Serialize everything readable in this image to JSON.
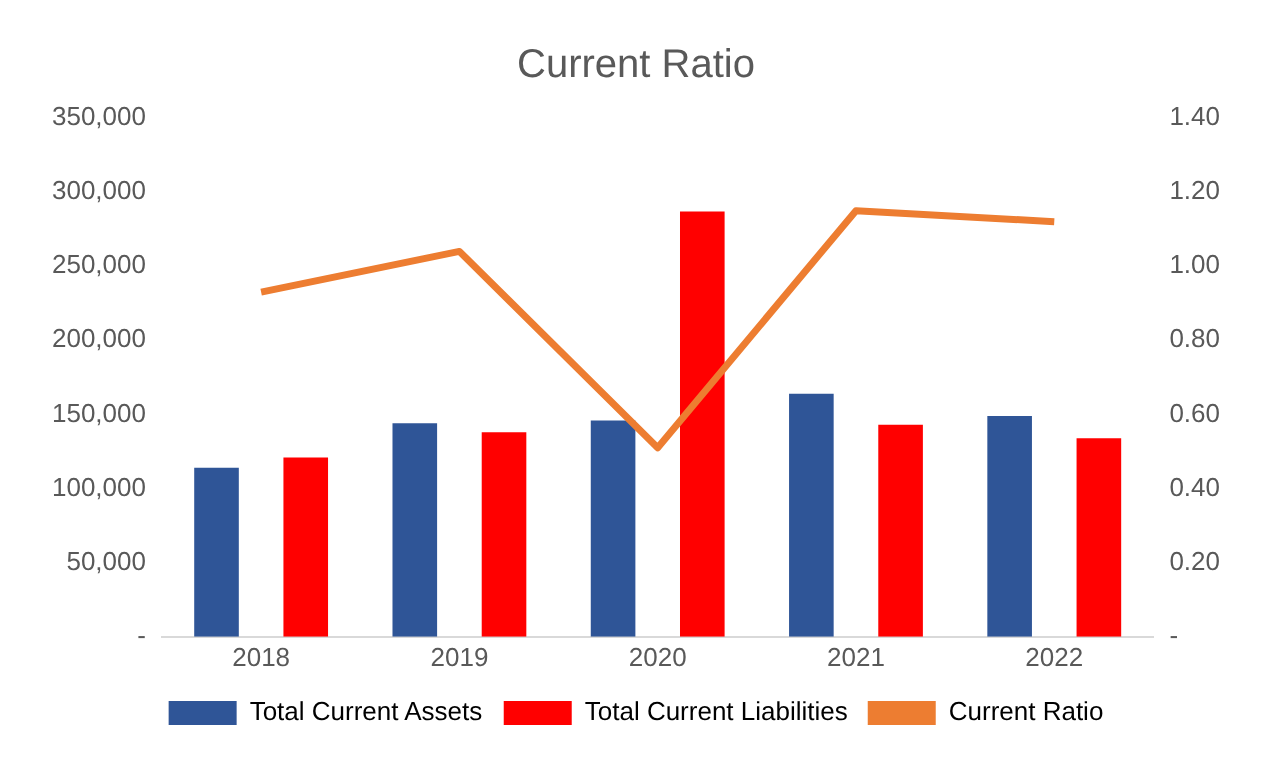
{
  "chart_data": {
    "type": "bar",
    "title": "Current Ratio",
    "categories": [
      "2018",
      "2019",
      "2020",
      "2021",
      "2022"
    ],
    "series": [
      {
        "name": "Total Current Assets",
        "color": "#2f5597",
        "values": [
          114000,
          144000,
          146000,
          164000,
          149000
        ]
      },
      {
        "name": "Total Current Liabilities",
        "color": "#ff0000",
        "values": [
          121000,
          138000,
          287000,
          143000,
          134000
        ]
      },
      {
        "name": "Current Ratio",
        "type": "line",
        "axis": "y2",
        "color": "#ed7d31",
        "values": [
          0.93,
          1.04,
          0.51,
          1.15,
          1.12
        ]
      }
    ],
    "ylim": [
      0,
      350000
    ],
    "yticks": [
      {
        "value": 0,
        "label": "-"
      },
      {
        "value": 50000,
        "label": "50,000"
      },
      {
        "value": 100000,
        "label": "100,000"
      },
      {
        "value": 150000,
        "label": "150,000"
      },
      {
        "value": 200000,
        "label": "200,000"
      },
      {
        "value": 250000,
        "label": "250,000"
      },
      {
        "value": 300000,
        "label": "300,000"
      },
      {
        "value": 350000,
        "label": "350,000"
      }
    ],
    "y2lim": [
      0,
      1.4
    ],
    "y2ticks": [
      {
        "value": 0,
        "label": "-"
      },
      {
        "value": 0.2,
        "label": "0.20"
      },
      {
        "value": 0.4,
        "label": "0.40"
      },
      {
        "value": 0.6,
        "label": "0.60"
      },
      {
        "value": 0.8,
        "label": "0.80"
      },
      {
        "value": 1.0,
        "label": "1.00"
      },
      {
        "value": 1.2,
        "label": "1.20"
      },
      {
        "value": 1.4,
        "label": "1.40"
      }
    ],
    "grid": false,
    "legend": "bottom",
    "marker": "none"
  }
}
